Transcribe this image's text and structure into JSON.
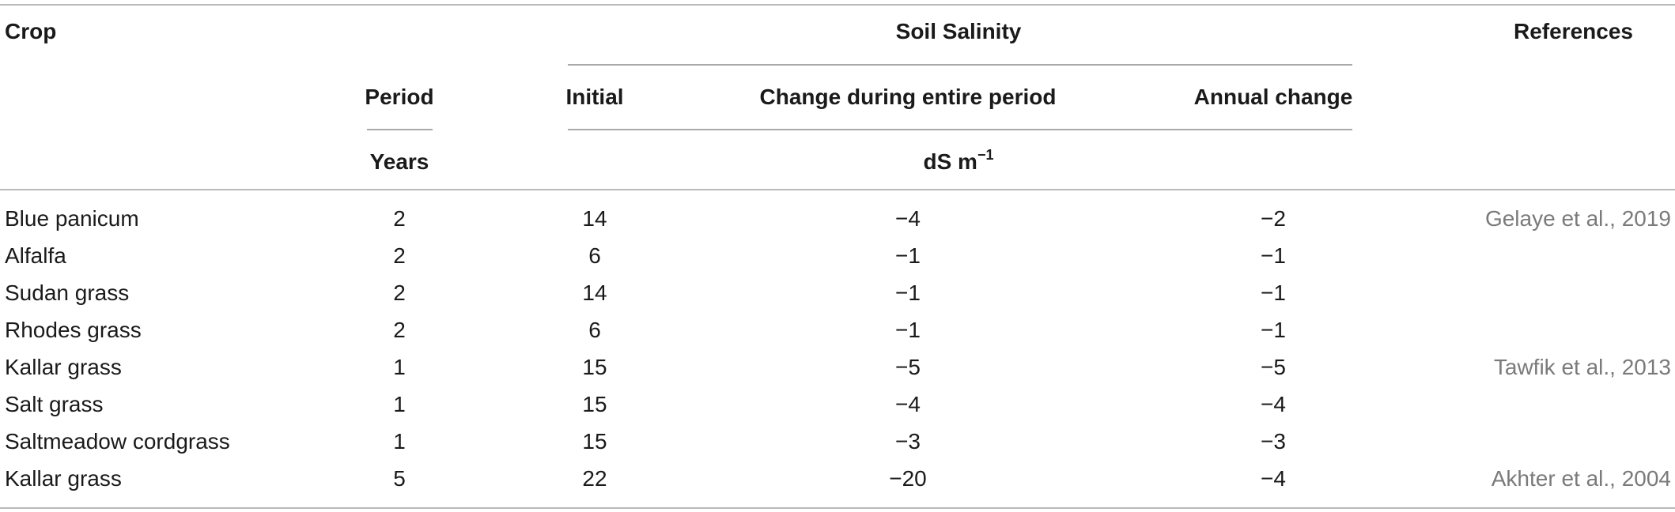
{
  "header": {
    "crop": "Crop",
    "soil_salinity": "Soil Salinity",
    "references": "References",
    "period": "Period",
    "initial": "Initial",
    "change_entire": "Change during entire period",
    "annual_change": "Annual change",
    "years": "Years",
    "unit_base": "dS m",
    "unit_exp": "−1"
  },
  "rows": [
    {
      "crop": "Blue panicum",
      "period": "2",
      "initial": "14",
      "change": "−4",
      "annual": "−2",
      "ref": "Gelaye et al., 2019"
    },
    {
      "crop": "Alfalfa",
      "period": "2",
      "initial": "6",
      "change": "−1",
      "annual": "−1",
      "ref": ""
    },
    {
      "crop": "Sudan grass",
      "period": "2",
      "initial": "14",
      "change": "−1",
      "annual": "−1",
      "ref": ""
    },
    {
      "crop": "Rhodes grass",
      "period": "2",
      "initial": "6",
      "change": "−1",
      "annual": "−1",
      "ref": ""
    },
    {
      "crop": "Kallar grass",
      "period": "1",
      "initial": "15",
      "change": "−5",
      "annual": "−5",
      "ref": "Tawfik et al., 2013"
    },
    {
      "crop": "Salt grass",
      "period": "1",
      "initial": "15",
      "change": "−4",
      "annual": "−4",
      "ref": ""
    },
    {
      "crop": "Saltmeadow cordgrass",
      "period": "1",
      "initial": "15",
      "change": "−3",
      "annual": "−3",
      "ref": ""
    },
    {
      "crop": "Kallar grass",
      "period": "5",
      "initial": "22",
      "change": "−20",
      "annual": "−4",
      "ref": "Akhter et al., 2004"
    }
  ]
}
